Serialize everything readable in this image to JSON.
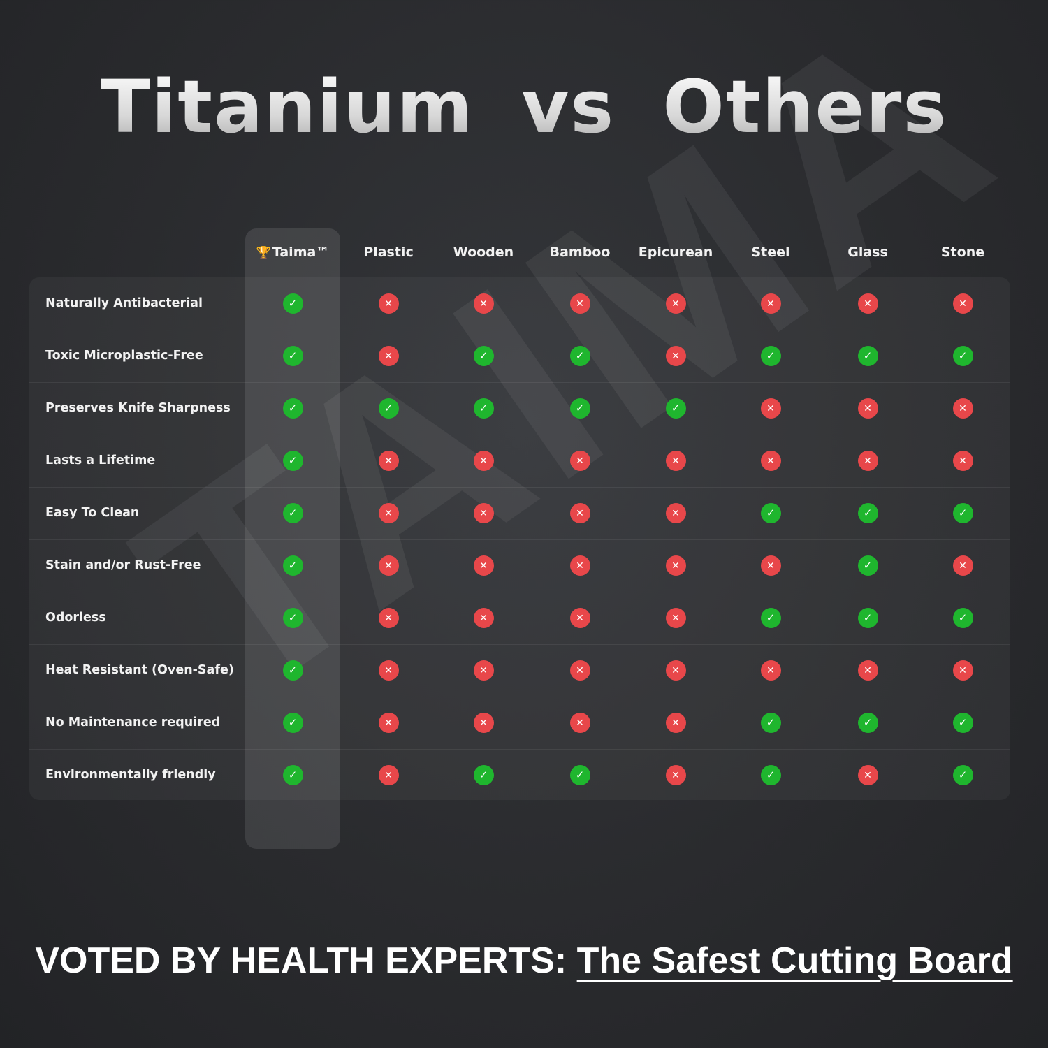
{
  "title": "Titanium vs Others",
  "watermark": "TAIMA",
  "colors": {
    "check": "#1fb62e",
    "cross": "#e8474a",
    "background": "#2a2b2e"
  },
  "icons": {
    "yes": "check-circle-icon",
    "no": "x-circle-icon",
    "brand": "trophy-icon"
  },
  "columns": [
    "Taima™",
    "Plastic",
    "Wooden",
    "Bamboo",
    "Epicurean",
    "Steel",
    "Glass",
    "Stone"
  ],
  "rows": [
    {
      "label": "Naturally Antibacterial",
      "values": [
        true,
        false,
        false,
        false,
        false,
        false,
        false,
        false
      ]
    },
    {
      "label": "Toxic Microplastic-Free",
      "values": [
        true,
        false,
        true,
        true,
        false,
        true,
        true,
        true
      ]
    },
    {
      "label": "Preserves Knife Sharpness",
      "values": [
        true,
        true,
        true,
        true,
        true,
        false,
        false,
        false
      ]
    },
    {
      "label": "Lasts a Lifetime",
      "values": [
        true,
        false,
        false,
        false,
        false,
        false,
        false,
        false
      ]
    },
    {
      "label": "Easy To Clean",
      "values": [
        true,
        false,
        false,
        false,
        false,
        true,
        true,
        true
      ]
    },
    {
      "label": "Stain and/or Rust-Free",
      "values": [
        true,
        false,
        false,
        false,
        false,
        false,
        true,
        false
      ]
    },
    {
      "label": "Odorless",
      "values": [
        true,
        false,
        false,
        false,
        false,
        true,
        true,
        true
      ]
    },
    {
      "label": "Heat Resistant (Oven-Safe)",
      "values": [
        true,
        false,
        false,
        false,
        false,
        false,
        false,
        false
      ]
    },
    {
      "label": "No Maintenance required",
      "values": [
        true,
        false,
        false,
        false,
        false,
        true,
        true,
        true
      ]
    },
    {
      "label": "Environmentally friendly",
      "values": [
        true,
        false,
        true,
        true,
        false,
        true,
        false,
        true
      ]
    }
  ],
  "footer": {
    "prefix": "VOTED BY HEALTH EXPERTS: ",
    "highlight": "The Safest Cutting Board"
  }
}
